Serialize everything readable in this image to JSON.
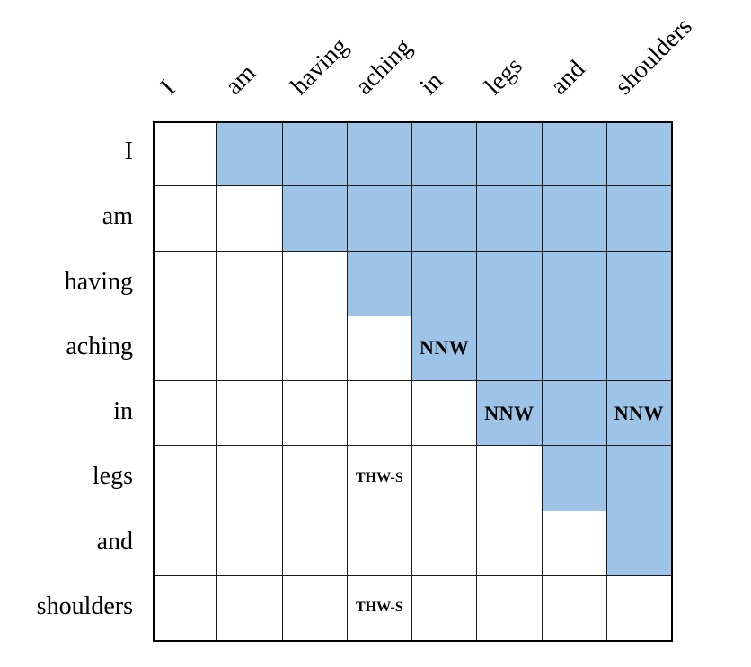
{
  "matrix": {
    "columns": [
      "I",
      "am",
      "having",
      "aching",
      "in",
      "legs",
      "and",
      "shoulders"
    ],
    "rows": [
      "I",
      "am",
      "having",
      "aching",
      "in",
      "legs",
      "and",
      "shoulders"
    ],
    "shade_color": "#9dc3e6",
    "shaded_region": "upper-triangle (column index > row index)",
    "annotations": [
      {
        "row": 3,
        "col": 4,
        "label": "NNW"
      },
      {
        "row": 4,
        "col": 5,
        "label": "NNW"
      },
      {
        "row": 4,
        "col": 7,
        "label": "NNW"
      },
      {
        "row": 5,
        "col": 3,
        "label": "THW-S"
      },
      {
        "row": 7,
        "col": 3,
        "label": "THW-S"
      }
    ]
  }
}
